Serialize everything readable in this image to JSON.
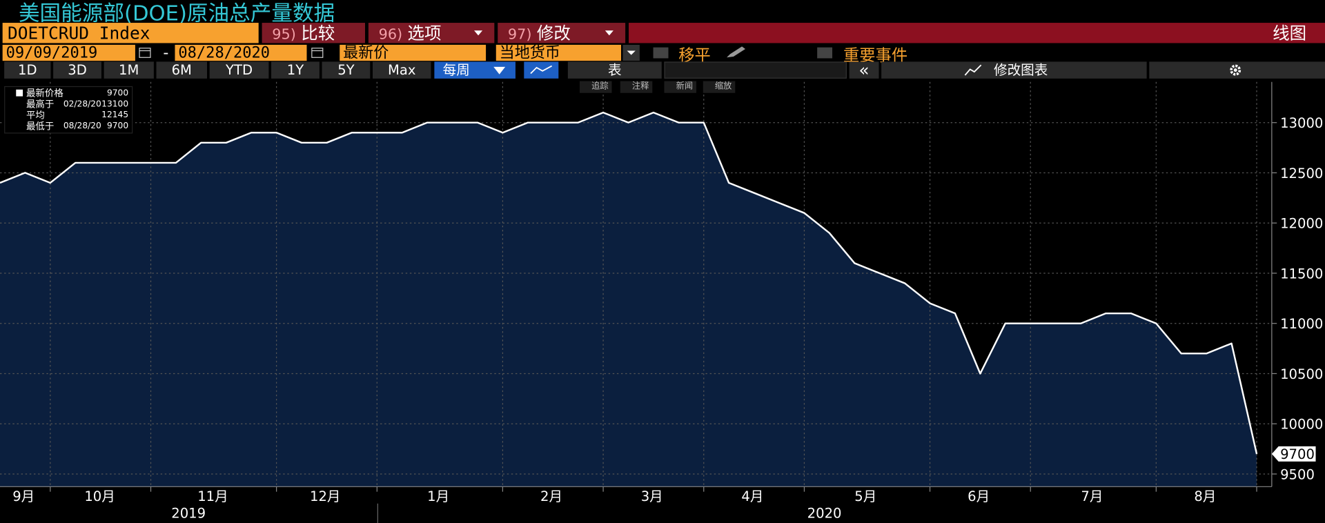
{
  "ui": {
    "ticker": "DOETCRUD Index",
    "buttons": [
      {
        "num": "95)",
        "label": "比较"
      },
      {
        "num": "96)",
        "label": "选项"
      },
      {
        "num": "97)",
        "label": "修改"
      }
    ],
    "view": "线图",
    "start": "09/09/2019",
    "dash": "-",
    "end": "08/28/2020",
    "price": "最新价",
    "currency": "当地货币",
    "smooth": "移平",
    "events": "重要事件",
    "ranges": [
      "1D",
      "3D",
      "1M",
      "6M",
      "YTD",
      "1Y",
      "5Y",
      "Max"
    ],
    "frequency": "每周",
    "table": "表",
    "collapse": "«",
    "edit_chart": "修改图表",
    "chart_tools": [
      "追踪",
      "注释",
      "新闻",
      "缩放"
    ]
  },
  "chart_data": {
    "type": "area",
    "title": "美国能源部(DOE)原油总产量数据",
    "x": [
      0,
      1,
      2,
      3,
      4,
      5,
      6,
      7,
      8,
      9,
      10,
      11,
      12,
      13,
      14,
      15,
      16,
      17,
      18,
      19,
      20,
      21,
      22,
      23,
      24,
      25,
      26,
      27,
      28,
      29,
      30,
      31,
      32,
      33,
      34,
      35,
      36,
      37,
      38,
      39,
      40,
      41,
      42,
      43,
      44,
      45,
      46,
      47,
      48,
      49,
      50
    ],
    "values": [
      12400,
      12500,
      12400,
      12600,
      12600,
      12600,
      12600,
      12600,
      12800,
      12800,
      12900,
      12900,
      12800,
      12800,
      12900,
      12900,
      12900,
      13000,
      13000,
      13000,
      12900,
      13000,
      13000,
      13000,
      13100,
      13000,
      13100,
      13000,
      13000,
      12400,
      12300,
      12200,
      12100,
      11900,
      11600,
      11500,
      11400,
      11200,
      11100,
      10500,
      11000,
      11000,
      11000,
      11000,
      11100,
      11100,
      11000,
      10700,
      10700,
      10800,
      9700
    ],
    "color": "#ffffff",
    "fill": "#0b1f3e",
    "xlim": [
      0,
      50.6
    ],
    "ylim": [
      9374,
      13405
    ],
    "yticks": [
      9500,
      10000,
      10500,
      11000,
      11500,
      12000,
      12500,
      13000
    ],
    "xticks": [
      {
        "value": 0.94,
        "label": "9月"
      },
      {
        "value": 3.97,
        "label": "10月"
      },
      {
        "value": 8.47,
        "label": "11月"
      },
      {
        "value": 12.94,
        "label": "12月"
      },
      {
        "value": 17.44,
        "label": "1月"
      },
      {
        "value": 21.94,
        "label": "2月"
      },
      {
        "value": 25.94,
        "label": "3月"
      },
      {
        "value": 29.94,
        "label": "4月"
      },
      {
        "value": 34.44,
        "label": "5月"
      },
      {
        "value": 38.94,
        "label": "6月"
      },
      {
        "value": 43.45,
        "label": "7月"
      },
      {
        "value": 47.95,
        "label": "8月"
      }
    ],
    "xgrid": [
      2,
      6,
      11,
      15,
      20,
      24,
      28,
      32,
      37,
      41,
      46,
      50
    ],
    "year_labels": [
      {
        "value": 7.5,
        "label": "2019"
      },
      {
        "value": 32.8,
        "label": "2020"
      }
    ],
    "grid": true,
    "stats": [
      {
        "label": "最新价格",
        "value": 9700
      },
      {
        "label": "最高于",
        "date": "02/28/20",
        "value": 13100
      },
      {
        "label": "平均",
        "value": 12145
      },
      {
        "label": "最低于",
        "date": "08/28/20",
        "value": 9700
      }
    ]
  }
}
